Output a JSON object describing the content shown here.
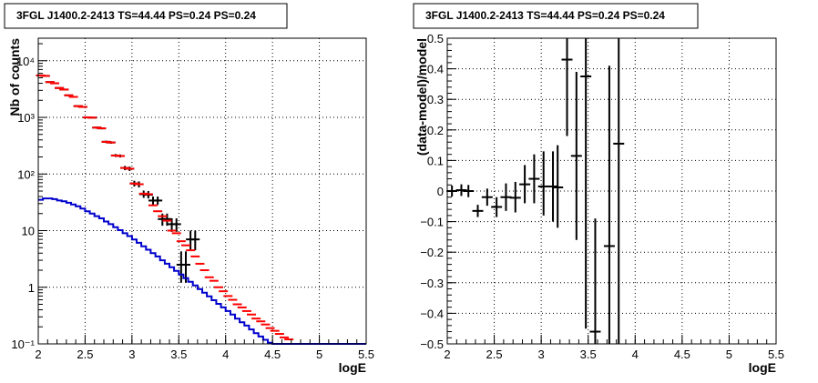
{
  "chart_data": [
    {
      "type": "line",
      "title": "3FGL J1400.2-2413 TS=44.44 PS=0.24 PS=0.24",
      "xlabel": "logE",
      "ylabel": "Nb of counts",
      "xlim": [
        2,
        5.5
      ],
      "ylim": [
        0.1,
        25000
      ],
      "yscale": "log",
      "grid": true,
      "x_ticks": [
        {
          "v": 2,
          "label": "2"
        },
        {
          "v": 2.5,
          "label": "2.5"
        },
        {
          "v": 3,
          "label": "3"
        },
        {
          "v": 3.5,
          "label": "3.5"
        },
        {
          "v": 4,
          "label": "4"
        },
        {
          "v": 4.5,
          "label": "4.5"
        },
        {
          "v": 5,
          "label": "5"
        },
        {
          "v": 5.5,
          "label": "5.5"
        }
      ],
      "y_ticks": [
        {
          "v": 0.1,
          "label": "10⁻¹"
        },
        {
          "v": 1,
          "label": "1"
        },
        {
          "v": 10,
          "label": "10"
        },
        {
          "v": 100,
          "label": "10²"
        },
        {
          "v": 1000,
          "label": "10³"
        },
        {
          "v": 10000,
          "label": "10⁴"
        }
      ],
      "series": [
        {
          "role": "data",
          "color": "#000000",
          "x": [
            2.025,
            2.075,
            2.125,
            2.175,
            2.225,
            2.275,
            2.325,
            2.375,
            2.425,
            2.475,
            2.525,
            2.575,
            2.625,
            2.675,
            2.725,
            2.775,
            2.825,
            2.875,
            2.925,
            2.975,
            3.025,
            3.075,
            3.125,
            3.175,
            3.225,
            3.275,
            3.325,
            3.375,
            3.425,
            3.475,
            3.525,
            3.575,
            3.625,
            3.675
          ],
          "y": [
            5500,
            5400,
            4200,
            4000,
            3300,
            3100,
            2450,
            2300,
            1580,
            1530,
            1000,
            990,
            660,
            640,
            370,
            360,
            212,
            208,
            128,
            124,
            68,
            66,
            44,
            43,
            34,
            34,
            16,
            16,
            13,
            13,
            2.5,
            2.5,
            7.0,
            7.0
          ],
          "err_lo": [
            5400,
            5300,
            4140,
            3940,
            3240,
            3040,
            2400,
            2250,
            1540,
            1490,
            970,
            960,
            635,
            615,
            352,
            342,
            200,
            196,
            117,
            113,
            60,
            58,
            38,
            37,
            28.5,
            28.5,
            12.2,
            12.2,
            9.5,
            9.5,
            1.2,
            1.2,
            4.5,
            4.5
          ],
          "err_hi": [
            5600,
            5500,
            4260,
            4060,
            3360,
            3160,
            2500,
            2350,
            1620,
            1570,
            1030,
            1020,
            685,
            665,
            388,
            378,
            225,
            221,
            139,
            135,
            76,
            74,
            51,
            50,
            40,
            40,
            20,
            20,
            16.5,
            16.5,
            4.3,
            4.3,
            10.0,
            10.0
          ]
        },
        {
          "role": "model",
          "color": "#ff0000",
          "x": [
            2.025,
            2.075,
            2.125,
            2.175,
            2.225,
            2.275,
            2.325,
            2.375,
            2.425,
            2.475,
            2.525,
            2.575,
            2.625,
            2.675,
            2.725,
            2.775,
            2.825,
            2.875,
            2.925,
            2.975,
            3.025,
            3.075,
            3.125,
            3.175,
            3.225,
            3.275,
            3.325,
            3.375,
            3.425,
            3.475,
            3.525,
            3.575,
            3.625,
            3.675,
            3.725,
            3.775,
            3.825,
            3.875,
            3.925,
            3.975,
            4.025,
            4.075,
            4.125,
            4.175,
            4.225,
            4.275,
            4.325,
            4.375,
            4.425,
            4.475,
            4.525,
            4.575,
            4.625,
            4.675
          ],
          "y": [
            5500,
            5400,
            4200,
            4000,
            3300,
            3100,
            2450,
            2300,
            1580,
            1530,
            1000,
            990,
            660,
            640,
            370,
            360,
            212,
            208,
            128,
            124,
            68,
            66,
            45,
            44,
            28,
            22,
            18,
            15,
            10,
            9,
            6.5,
            5.5,
            4.5,
            3.5,
            2.6,
            2.0,
            1.5,
            1.3,
            1.0,
            0.85,
            0.7,
            0.6,
            0.5,
            0.44,
            0.38,
            0.33,
            0.28,
            0.25,
            0.22,
            0.19,
            0.17,
            0.15,
            0.13,
            0.12
          ],
          "err_lo": [],
          "err_hi": []
        },
        {
          "role": "source",
          "color": "#0000cc",
          "edges": [
            2.0,
            2.05,
            2.1,
            2.15,
            2.2,
            2.25,
            2.3,
            2.35,
            2.4,
            2.45,
            2.5,
            2.55,
            2.6,
            2.65,
            2.7,
            2.75,
            2.8,
            2.85,
            2.9,
            2.95,
            3.0,
            3.05,
            3.1,
            3.15,
            3.2,
            3.25,
            3.3,
            3.35,
            3.4,
            3.45,
            3.5,
            3.55,
            3.6,
            3.65,
            3.7,
            3.75,
            3.8,
            3.85,
            3.9,
            3.95,
            4.0,
            4.05,
            4.1,
            4.15,
            4.2,
            4.25,
            4.3,
            4.35,
            4.4,
            4.45,
            4.5,
            4.55,
            4.6,
            4.65,
            4.7,
            4.75,
            5.5
          ],
          "y": [
            35,
            37,
            37,
            36,
            34,
            33,
            31,
            29,
            27,
            24.5,
            22,
            20,
            18,
            16.5,
            14.5,
            13,
            11.5,
            10.2,
            9.0,
            8.0,
            7.0,
            6.1,
            5.3,
            4.6,
            4.0,
            3.5,
            3.0,
            2.6,
            2.25,
            1.95,
            1.68,
            1.45,
            1.25,
            1.08,
            0.93,
            0.8,
            0.69,
            0.59,
            0.51,
            0.44,
            0.38,
            0.33,
            0.28,
            0.24,
            0.21,
            0.18,
            0.155,
            0.135,
            0.118,
            0.105,
            0.1,
            0.1,
            0.1,
            0.1,
            0.1,
            0.1
          ]
        }
      ]
    },
    {
      "type": "scatter",
      "title": "3FGL J1400.2-2413 TS=44.44 PS=0.24 PS=0.24",
      "xlabel": "logE",
      "ylabel": "(data-model)/model",
      "xlim": [
        2,
        5.5
      ],
      "ylim": [
        -0.5,
        0.5
      ],
      "grid": true,
      "x_ticks": [
        {
          "v": 2,
          "label": "2"
        },
        {
          "v": 2.5,
          "label": "2.5"
        },
        {
          "v": 3,
          "label": "3"
        },
        {
          "v": 3.5,
          "label": "3.5"
        },
        {
          "v": 4,
          "label": "4"
        },
        {
          "v": 4.5,
          "label": "4.5"
        },
        {
          "v": 5,
          "label": "5"
        },
        {
          "v": 5.5,
          "label": "5.5"
        }
      ],
      "y_ticks": [
        {
          "v": -0.5,
          "label": "−0.5"
        },
        {
          "v": -0.4,
          "label": "−0.4"
        },
        {
          "v": -0.3,
          "label": "−0.3"
        },
        {
          "v": -0.2,
          "label": "−0.2"
        },
        {
          "v": -0.1,
          "label": "−0.1"
        },
        {
          "v": 0,
          "label": "0"
        },
        {
          "v": 0.1,
          "label": "0.1"
        },
        {
          "v": 0.2,
          "label": "0.2"
        },
        {
          "v": 0.3,
          "label": "0.3"
        },
        {
          "v": 0.4,
          "label": "0.4"
        },
        {
          "v": 0.5,
          "label": "0.5"
        }
      ],
      "series": [
        {
          "color": "#000000",
          "x": [
            2.05,
            2.15,
            2.225,
            2.325,
            2.425,
            2.525,
            2.625,
            2.725,
            2.825,
            2.925,
            3.025,
            3.125,
            3.175,
            3.275,
            3.375,
            3.475,
            3.575,
            3.725,
            3.825
          ],
          "y": [
            0.0,
            0.003,
            0.0,
            -0.065,
            -0.02,
            -0.052,
            -0.02,
            -0.022,
            0.022,
            0.04,
            0.015,
            0.015,
            0.012,
            0.43,
            0.115,
            0.375,
            -0.46,
            -0.18,
            0.155
          ],
          "err_lo": [
            -0.018,
            -0.016,
            -0.02,
            -0.085,
            -0.048,
            -0.085,
            -0.065,
            -0.07,
            -0.04,
            -0.04,
            -0.08,
            -0.1,
            -0.12,
            0.18,
            -0.16,
            -0.45,
            -0.5,
            -0.5,
            -0.5
          ],
          "err_hi": [
            0.018,
            0.022,
            0.02,
            -0.045,
            0.008,
            -0.02,
            0.025,
            0.03,
            0.085,
            0.12,
            0.13,
            0.13,
            0.15,
            0.5,
            0.39,
            0.5,
            -0.09,
            0.41,
            0.5
          ]
        }
      ]
    }
  ]
}
